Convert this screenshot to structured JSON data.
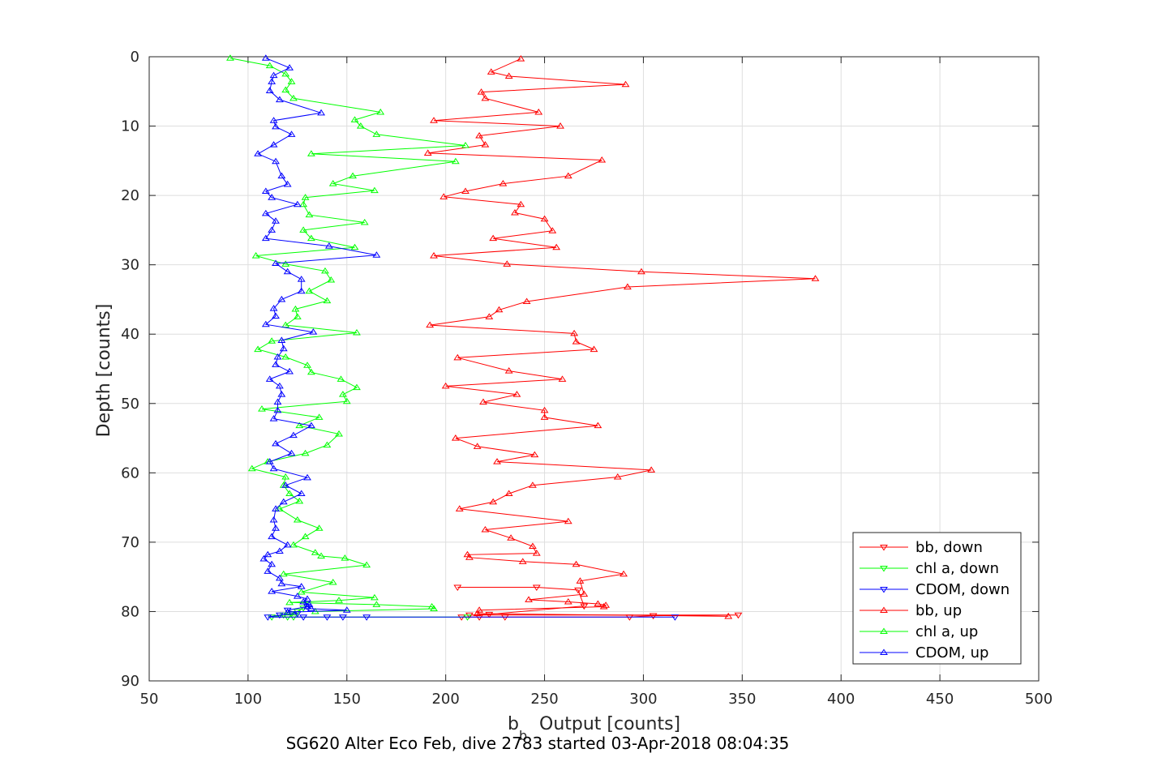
{
  "chart_data": {
    "type": "line",
    "title": "SG620 Alter Eco Feb, dive 2783 started 03-Apr-2018 08:04:35",
    "xlabel": "Output [counts]",
    "xlabel_symbol": "b",
    "xlabel_subscript": "b",
    "ylabel": "Depth [counts]",
    "xlim": [
      50,
      500
    ],
    "ylim": [
      0,
      90
    ],
    "y_reversed": true,
    "x_ticks": [
      50,
      100,
      150,
      200,
      250,
      300,
      350,
      400,
      450,
      500
    ],
    "y_ticks": [
      0,
      10,
      20,
      30,
      40,
      50,
      60,
      70,
      80,
      90
    ],
    "grid": true,
    "legend_position": "bottom-right",
    "series": [
      {
        "name": "bb, down",
        "color": "#ff0000",
        "marker": "triangle-down",
        "x": [
          206,
          246,
          267,
          270,
          222,
          212,
          348,
          305,
          293,
          230,
          217,
          208
        ],
        "y": [
          76.5,
          76.5,
          76.9,
          79.2,
          80.4,
          80.5,
          80.5,
          80.6,
          80.8,
          80.8,
          80.8,
          80.8
        ]
      },
      {
        "name": "chl a, down",
        "color": "#00ff00",
        "marker": "triangle-down",
        "x": [
          128,
          125,
          122,
          118,
          112,
          120,
          123,
          211
        ],
        "y": [
          79.5,
          80.0,
          80.3,
          80.5,
          80.8,
          80.8,
          80.8,
          80.8
        ]
      },
      {
        "name": "CDOM, down",
        "color": "#0000ff",
        "marker": "triangle-down",
        "x": [
          130,
          120,
          125,
          116,
          110,
          160,
          148,
          140,
          128,
          316
        ],
        "y": [
          79.3,
          79.8,
          80.3,
          80.5,
          80.8,
          80.8,
          80.8,
          80.8,
          80.8,
          80.8
        ]
      },
      {
        "name": "bb, up",
        "color": "#ff0000",
        "marker": "triangle-up",
        "x": [
          238,
          223,
          232,
          291,
          218,
          220,
          247,
          194,
          258,
          217,
          220,
          191,
          279,
          262,
          229,
          210,
          199,
          238,
          235,
          250,
          254,
          224,
          256,
          194,
          231,
          299,
          387,
          292,
          241,
          227,
          222,
          192,
          265,
          266,
          275,
          206,
          232,
          259,
          200,
          236,
          219,
          250,
          250,
          277,
          205,
          216,
          245,
          226,
          304,
          287,
          244,
          232,
          224,
          207,
          262,
          220,
          233,
          244,
          246,
          211,
          212,
          239,
          266,
          290,
          268,
          270,
          242,
          262,
          277,
          281,
          280,
          217,
          216,
          343
        ],
        "y": [
          0.3,
          2.2,
          2.8,
          4.0,
          5.1,
          6.0,
          8.0,
          9.2,
          10.0,
          11.4,
          12.7,
          13.9,
          14.9,
          17.2,
          18.3,
          19.4,
          20.2,
          21.3,
          22.5,
          23.4,
          25.1,
          26.2,
          27.5,
          28.7,
          29.9,
          31.0,
          32.0,
          33.2,
          35.3,
          36.5,
          37.5,
          38.7,
          39.9,
          41.1,
          42.2,
          43.4,
          45.3,
          46.5,
          47.5,
          48.7,
          49.8,
          51.0,
          52.0,
          53.2,
          55.0,
          56.2,
          57.4,
          58.4,
          59.6,
          60.6,
          61.8,
          63.0,
          64.2,
          65.2,
          67.0,
          68.2,
          69.4,
          70.6,
          71.6,
          71.8,
          72.2,
          72.8,
          73.2,
          74.6,
          75.6,
          77.5,
          78.3,
          78.6,
          78.9,
          79.1,
          79.3,
          79.8,
          80.3,
          80.7
        ]
      },
      {
        "name": "chl a, up",
        "color": "#00ff00",
        "marker": "triangle-up",
        "x": [
          91,
          111,
          119,
          122,
          119,
          123,
          167,
          154,
          157,
          165,
          210,
          132,
          205,
          153,
          143,
          164,
          129,
          128,
          131,
          159,
          128,
          132,
          154,
          104,
          119,
          139,
          142,
          131,
          140,
          124,
          125,
          119,
          155,
          112,
          105,
          119,
          130,
          132,
          147,
          155,
          148,
          150,
          107,
          136,
          126,
          146,
          140,
          129,
          110,
          102,
          119,
          118,
          121,
          126,
          116,
          125,
          136,
          129,
          123,
          134,
          137,
          149,
          160,
          118,
          143,
          127,
          164,
          146,
          121,
          165,
          193,
          194,
          134
        ],
        "y": [
          0.2,
          1.3,
          2.5,
          3.6,
          4.8,
          6.0,
          8.0,
          9.1,
          10.0,
          11.2,
          12.8,
          14.0,
          15.1,
          17.2,
          18.3,
          19.3,
          20.3,
          21.3,
          22.8,
          23.9,
          25.0,
          26.2,
          27.5,
          28.7,
          29.9,
          30.9,
          32.2,
          33.8,
          35.2,
          36.4,
          37.5,
          38.7,
          39.8,
          41.0,
          42.2,
          43.3,
          44.5,
          45.5,
          46.5,
          47.7,
          48.7,
          49.7,
          50.8,
          52.0,
          53.2,
          54.4,
          56.0,
          57.2,
          58.4,
          59.4,
          60.6,
          61.8,
          63.0,
          64.1,
          65.2,
          66.8,
          68.0,
          69.2,
          70.4,
          71.5,
          72.0,
          72.3,
          73.3,
          74.6,
          75.8,
          77.2,
          78.0,
          78.4,
          78.7,
          79.0,
          79.3,
          79.6,
          80.0
        ]
      },
      {
        "name": "CDOM, up",
        "color": "#0000ff",
        "marker": "triangle-up",
        "x": [
          109,
          121,
          113,
          112,
          111,
          116,
          137,
          113,
          114,
          122,
          113,
          105,
          114,
          117,
          120,
          109,
          112,
          125,
          109,
          114,
          112,
          109,
          141,
          165,
          114,
          120,
          127,
          127,
          117,
          113,
          114,
          109,
          133,
          117,
          118,
          115,
          114,
          121,
          111,
          116,
          117,
          115,
          115,
          113,
          132,
          123,
          114,
          122,
          111,
          113,
          130,
          119,
          127,
          118,
          114,
          113,
          114,
          112,
          120,
          116,
          110,
          108,
          112,
          110,
          116,
          117,
          127,
          112,
          125,
          130,
          128,
          131,
          130,
          132,
          150,
          120
        ],
        "y": [
          0.2,
          1.6,
          2.7,
          3.6,
          4.9,
          6.2,
          8.1,
          9.2,
          10.1,
          11.2,
          12.7,
          14.0,
          15.1,
          17.2,
          18.4,
          19.4,
          20.3,
          21.3,
          22.6,
          23.7,
          25.0,
          26.2,
          27.3,
          28.6,
          29.8,
          31.0,
          32.1,
          33.8,
          35.0,
          36.3,
          37.4,
          38.6,
          39.7,
          40.9,
          42.1,
          43.3,
          44.4,
          45.4,
          46.5,
          47.5,
          48.7,
          49.8,
          51.0,
          52.2,
          53.2,
          54.6,
          55.8,
          57.2,
          58.4,
          59.4,
          60.7,
          61.8,
          63.0,
          64.2,
          65.2,
          66.8,
          68.0,
          69.2,
          70.4,
          71.3,
          71.8,
          72.4,
          73.2,
          74.2,
          75.2,
          76.0,
          76.4,
          77.1,
          77.8,
          78.2,
          78.6,
          79.0,
          79.3,
          79.6,
          79.8,
          80.1
        ]
      }
    ]
  }
}
